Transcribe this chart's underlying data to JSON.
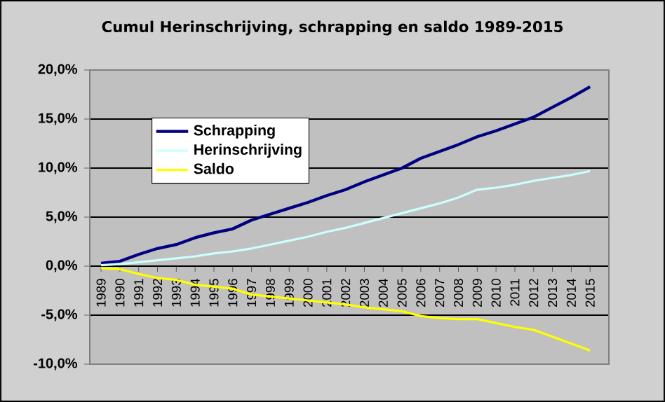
{
  "chart_data": {
    "type": "line",
    "title": "Cumul Herinschrijving, schrapping en saldo 1989-2015",
    "categories": [
      "1989",
      "1990",
      "1991",
      "1992",
      "1993",
      "1994",
      "1995",
      "1996",
      "1997",
      "1998",
      "1999",
      "2000",
      "2001",
      "2002",
      "2003",
      "2004",
      "2005",
      "2006",
      "2007",
      "2008",
      "2009",
      "2010",
      "2011",
      "2012",
      "2013",
      "2014",
      "2015"
    ],
    "series": [
      {
        "name": "Schrapping",
        "color": "#000080",
        "values": [
          0.3,
          0.5,
          1.2,
          1.8,
          2.2,
          2.9,
          3.4,
          3.8,
          4.7,
          5.3,
          5.9,
          6.5,
          7.2,
          7.8,
          8.6,
          9.3,
          10.0,
          11.0,
          11.7,
          12.4,
          13.2,
          13.8,
          14.5,
          15.2,
          16.2,
          17.2,
          18.3
        ]
      },
      {
        "name": "Herinschrijving",
        "color": "#ccffff",
        "values": [
          0.1,
          0.2,
          0.4,
          0.6,
          0.8,
          1.0,
          1.3,
          1.5,
          1.8,
          2.2,
          2.6,
          3.0,
          3.5,
          3.9,
          4.4,
          4.9,
          5.4,
          5.9,
          6.4,
          7.0,
          7.8,
          8.0,
          8.3,
          8.7,
          9.0,
          9.3,
          9.7
        ]
      },
      {
        "name": "Saldo",
        "color": "#ffff00",
        "values": [
          -0.2,
          -0.3,
          -0.8,
          -1.2,
          -1.4,
          -1.9,
          -2.1,
          -2.3,
          -2.9,
          -3.1,
          -3.3,
          -3.5,
          -3.7,
          -3.9,
          -4.2,
          -4.4,
          -4.6,
          -5.1,
          -5.3,
          -5.4,
          -5.4,
          -5.8,
          -6.2,
          -6.5,
          -7.2,
          -7.9,
          -8.6
        ]
      }
    ],
    "ylim": [
      -10,
      20
    ],
    "yticks": [
      {
        "value": -10,
        "label": "-10,0%"
      },
      {
        "value": -5,
        "label": "-5,0%"
      },
      {
        "value": 0,
        "label": "0,0%"
      },
      {
        "value": 5,
        "label": "5,0%"
      },
      {
        "value": 10,
        "label": "10,0%"
      },
      {
        "value": 15,
        "label": "15,0%"
      },
      {
        "value": 20,
        "label": "20,0%"
      }
    ],
    "grid": "y",
    "legend": "top left",
    "marker": "none",
    "line_style": "solid"
  }
}
